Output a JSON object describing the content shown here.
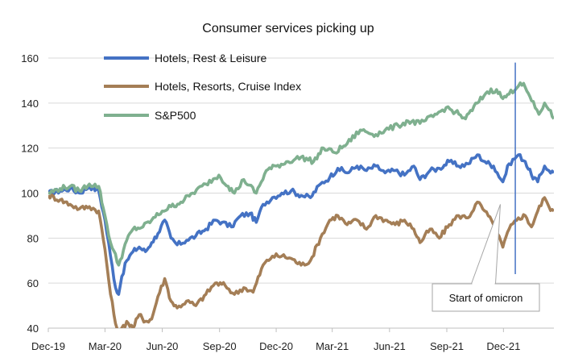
{
  "chart_data": {
    "type": "line",
    "title": "Consumer services picking up",
    "xlabel": "",
    "ylabel": "",
    "ylim": [
      40,
      160
    ],
    "yticks": [
      40,
      60,
      80,
      100,
      120,
      140,
      160
    ],
    "xlim": [
      "2019-12-01",
      "2022-02-20"
    ],
    "xticks": [
      {
        "label": "Dec-19",
        "date": "2019-12-01"
      },
      {
        "label": "Mar-20",
        "date": "2020-03-01"
      },
      {
        "label": "Jun-20",
        "date": "2020-06-01"
      },
      {
        "label": "Sep-20",
        "date": "2020-09-01"
      },
      {
        "label": "Dec-20",
        "date": "2020-12-01"
      },
      {
        "label": "Mar-21",
        "date": "2021-03-01"
      },
      {
        "label": "Jun-21",
        "date": "2021-06-01"
      },
      {
        "label": "Sep-21",
        "date": "2021-09-01"
      },
      {
        "label": "Dec-21",
        "date": "2021-12-01"
      }
    ],
    "grid": "horizontal",
    "legend_position": "top-left",
    "series": [
      {
        "name": "Hotels, Rest & Leisure",
        "color": "#4472C4",
        "points": [
          [
            "2019-12-01",
            100
          ],
          [
            "2019-12-20",
            101
          ],
          [
            "2020-01-05",
            102
          ],
          [
            "2020-01-20",
            100
          ],
          [
            "2020-02-05",
            103
          ],
          [
            "2020-02-20",
            101
          ],
          [
            "2020-03-01",
            88
          ],
          [
            "2020-03-10",
            72
          ],
          [
            "2020-03-18",
            58
          ],
          [
            "2020-03-23",
            55
          ],
          [
            "2020-03-28",
            63
          ],
          [
            "2020-04-05",
            70
          ],
          [
            "2020-04-15",
            74
          ],
          [
            "2020-04-25",
            76
          ],
          [
            "2020-05-05",
            74
          ],
          [
            "2020-05-15",
            78
          ],
          [
            "2020-05-25",
            82
          ],
          [
            "2020-06-05",
            88
          ],
          [
            "2020-06-15",
            80
          ],
          [
            "2020-06-25",
            77
          ],
          [
            "2020-07-10",
            79
          ],
          [
            "2020-07-25",
            81
          ],
          [
            "2020-08-10",
            84
          ],
          [
            "2020-08-25",
            88
          ],
          [
            "2020-09-05",
            87
          ],
          [
            "2020-09-20",
            85
          ],
          [
            "2020-10-05",
            90
          ],
          [
            "2020-10-20",
            91
          ],
          [
            "2020-10-30",
            87
          ],
          [
            "2020-11-10",
            95
          ],
          [
            "2020-11-25",
            98
          ],
          [
            "2020-12-10",
            100
          ],
          [
            "2020-12-25",
            101
          ],
          [
            "2021-01-10",
            99
          ],
          [
            "2021-01-25",
            98
          ],
          [
            "2021-02-10",
            104
          ],
          [
            "2021-02-25",
            107
          ],
          [
            "2021-03-10",
            111
          ],
          [
            "2021-03-25",
            109
          ],
          [
            "2021-04-10",
            112
          ],
          [
            "2021-04-25",
            110
          ],
          [
            "2021-05-10",
            112
          ],
          [
            "2021-05-25",
            109
          ],
          [
            "2021-06-10",
            110
          ],
          [
            "2021-06-25",
            108
          ],
          [
            "2021-07-10",
            112
          ],
          [
            "2021-07-20",
            106
          ],
          [
            "2021-08-05",
            110
          ],
          [
            "2021-08-20",
            111
          ],
          [
            "2021-09-05",
            114
          ],
          [
            "2021-09-20",
            112
          ],
          [
            "2021-10-05",
            113
          ],
          [
            "2021-10-20",
            117
          ],
          [
            "2021-11-01",
            114
          ],
          [
            "2021-11-15",
            112
          ],
          [
            "2021-11-30",
            105
          ],
          [
            "2021-12-10",
            113
          ],
          [
            "2021-12-25",
            117
          ],
          [
            "2022-01-05",
            114
          ],
          [
            "2022-01-15",
            108
          ],
          [
            "2022-01-25",
            105
          ],
          [
            "2022-02-05",
            112
          ],
          [
            "2022-02-12",
            110
          ],
          [
            "2022-02-20",
            109
          ]
        ]
      },
      {
        "name": "Hotels, Resorts, Cruise Index",
        "color": "#A47E56",
        "points": [
          [
            "2019-12-01",
            99
          ],
          [
            "2019-12-20",
            97
          ],
          [
            "2020-01-05",
            95
          ],
          [
            "2020-01-20",
            93
          ],
          [
            "2020-02-05",
            94
          ],
          [
            "2020-02-20",
            92
          ],
          [
            "2020-03-01",
            75
          ],
          [
            "2020-03-10",
            55
          ],
          [
            "2020-03-18",
            42
          ],
          [
            "2020-03-25",
            38
          ],
          [
            "2020-04-05",
            43
          ],
          [
            "2020-04-15",
            40
          ],
          [
            "2020-04-25",
            46
          ],
          [
            "2020-05-05",
            43
          ],
          [
            "2020-05-15",
            44
          ],
          [
            "2020-05-25",
            54
          ],
          [
            "2020-06-05",
            62
          ],
          [
            "2020-06-15",
            52
          ],
          [
            "2020-06-25",
            49
          ],
          [
            "2020-07-10",
            52
          ],
          [
            "2020-07-25",
            50
          ],
          [
            "2020-08-10",
            55
          ],
          [
            "2020-08-25",
            60
          ],
          [
            "2020-09-10",
            59
          ],
          [
            "2020-09-25",
            55
          ],
          [
            "2020-10-10",
            58
          ],
          [
            "2020-10-25",
            56
          ],
          [
            "2020-11-10",
            68
          ],
          [
            "2020-11-25",
            72
          ],
          [
            "2020-12-10",
            72
          ],
          [
            "2020-12-25",
            71
          ],
          [
            "2021-01-10",
            68
          ],
          [
            "2021-01-25",
            70
          ],
          [
            "2021-02-10",
            80
          ],
          [
            "2021-02-25",
            88
          ],
          [
            "2021-03-10",
            90
          ],
          [
            "2021-03-25",
            86
          ],
          [
            "2021-04-10",
            88
          ],
          [
            "2021-04-25",
            84
          ],
          [
            "2021-05-10",
            90
          ],
          [
            "2021-05-25",
            88
          ],
          [
            "2021-06-10",
            86
          ],
          [
            "2021-06-25",
            88
          ],
          [
            "2021-07-10",
            84
          ],
          [
            "2021-07-20",
            78
          ],
          [
            "2021-08-05",
            84
          ],
          [
            "2021-08-20",
            80
          ],
          [
            "2021-09-05",
            86
          ],
          [
            "2021-09-20",
            90
          ],
          [
            "2021-10-05",
            89
          ],
          [
            "2021-10-20",
            96
          ],
          [
            "2021-11-01",
            92
          ],
          [
            "2021-11-15",
            86
          ],
          [
            "2021-11-30",
            76
          ],
          [
            "2021-12-10",
            84
          ],
          [
            "2021-12-25",
            89
          ],
          [
            "2022-01-05",
            90
          ],
          [
            "2022-01-15",
            85
          ],
          [
            "2022-01-25",
            92
          ],
          [
            "2022-02-05",
            98
          ],
          [
            "2022-02-12",
            94
          ],
          [
            "2022-02-20",
            92
          ]
        ]
      },
      {
        "name": "S&P500",
        "color": "#7FB08F",
        "points": [
          [
            "2019-12-01",
            100
          ],
          [
            "2019-12-20",
            102
          ],
          [
            "2020-01-05",
            103
          ],
          [
            "2020-01-20",
            101
          ],
          [
            "2020-02-05",
            104
          ],
          [
            "2020-02-20",
            103
          ],
          [
            "2020-03-01",
            90
          ],
          [
            "2020-03-10",
            78
          ],
          [
            "2020-03-23",
            68
          ],
          [
            "2020-04-05",
            79
          ],
          [
            "2020-04-15",
            84
          ],
          [
            "2020-05-01",
            85
          ],
          [
            "2020-05-15",
            88
          ],
          [
            "2020-06-01",
            92
          ],
          [
            "2020-06-15",
            94
          ],
          [
            "2020-07-01",
            96
          ],
          [
            "2020-07-20",
            100
          ],
          [
            "2020-08-10",
            104
          ],
          [
            "2020-08-31",
            108
          ],
          [
            "2020-09-15",
            103
          ],
          [
            "2020-09-25",
            100
          ],
          [
            "2020-10-10",
            106
          ],
          [
            "2020-10-30",
            100
          ],
          [
            "2020-11-15",
            110
          ],
          [
            "2020-12-01",
            112
          ],
          [
            "2020-12-20",
            114
          ],
          [
            "2021-01-10",
            116
          ],
          [
            "2021-01-30",
            114
          ],
          [
            "2021-02-15",
            120
          ],
          [
            "2021-03-05",
            118
          ],
          [
            "2021-03-25",
            122
          ],
          [
            "2021-04-15",
            128
          ],
          [
            "2021-05-10",
            126
          ],
          [
            "2021-05-25",
            128
          ],
          [
            "2021-06-15",
            130
          ],
          [
            "2021-07-01",
            132
          ],
          [
            "2021-07-20",
            131
          ],
          [
            "2021-08-10",
            134
          ],
          [
            "2021-08-31",
            138
          ],
          [
            "2021-09-15",
            136
          ],
          [
            "2021-10-01",
            133
          ],
          [
            "2021-10-20",
            140
          ],
          [
            "2021-11-05",
            145
          ],
          [
            "2021-11-20",
            146
          ],
          [
            "2021-11-30",
            142
          ],
          [
            "2021-12-10",
            144
          ],
          [
            "2021-12-28",
            149
          ],
          [
            "2022-01-05",
            147
          ],
          [
            "2022-01-15",
            141
          ],
          [
            "2022-01-27",
            135
          ],
          [
            "2022-02-05",
            140
          ],
          [
            "2022-02-12",
            137
          ],
          [
            "2022-02-20",
            133
          ]
        ]
      }
    ],
    "annotations": [
      {
        "text": "Start of omicron",
        "date": "2021-11-26",
        "value": 95
      },
      {
        "type": "vertical-line",
        "date": "2021-12-20",
        "from": 64,
        "to": 158,
        "color": "#4472C4"
      }
    ]
  }
}
